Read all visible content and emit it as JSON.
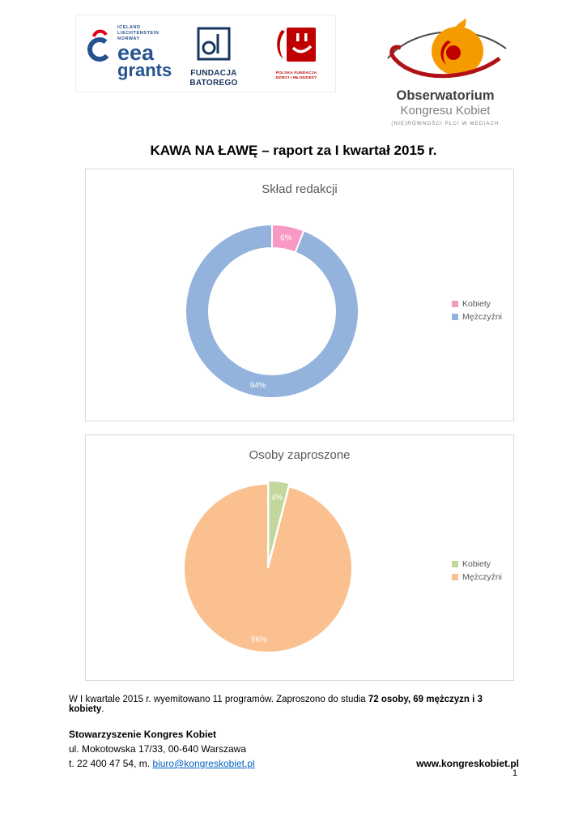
{
  "document": {
    "title": "KAWA NA ŁAWĘ – raport za I kwartał 2015 r.",
    "page_number": "1"
  },
  "header": {
    "eea_logo": {
      "countries": [
        "ICELAND",
        "LIECHTENSTEIN",
        "NORWAY"
      ],
      "name_line1": "eea",
      "name_line2": "grants"
    },
    "batory_logo": {
      "line1": "FUNDACJA",
      "line2": "BATOREGO"
    },
    "pfdim_logo": {
      "line1": "POLSKA FUNDACJA",
      "line2": "DZIECI I MŁODZIEŻY"
    },
    "okk_logo": {
      "line1": "Obserwatorium",
      "line2": "Kongresu Kobiet",
      "line3": "(NIE)RÓWNOŚCI PŁCI W MEDIACH"
    }
  },
  "chart_data": [
    {
      "type": "pie",
      "subtype": "donut",
      "title": "Skład redakcji",
      "labels": [
        "Kobiety",
        "Mężczyźni"
      ],
      "values": [
        6,
        94
      ],
      "data_labels": [
        "6%",
        "94%"
      ],
      "colors": [
        "#f898c5",
        "#93b2dc"
      ],
      "legend_position": "right",
      "start_angle_deg": 0
    },
    {
      "type": "pie",
      "subtype": "pie",
      "title": "Osoby zaproszone",
      "labels": [
        "Kobiety",
        "Mężczyźni"
      ],
      "values": [
        4,
        96
      ],
      "data_labels": [
        "4%",
        "96%"
      ],
      "colors": [
        "#c3d69b",
        "#fac090"
      ],
      "legend_position": "right",
      "start_angle_deg": 0
    }
  ],
  "summary": {
    "prefix": "W I kwartale 2015 r. wyemitowano 11 programów. Zaproszono do studia ",
    "bold": "72 osoby, 69 mężczyzn i 3 kobiety",
    "suffix": "."
  },
  "footer": {
    "org": "Stowarzyszenie Kongres Kobiet",
    "address": "ul. Mokotowska 17/33, 00-640 Warszawa",
    "contact_prefix": "t. 22 400 47 54, m. ",
    "email": "biuro@kongreskobiet.pl",
    "website": "www.kongreskobiet.pl"
  }
}
